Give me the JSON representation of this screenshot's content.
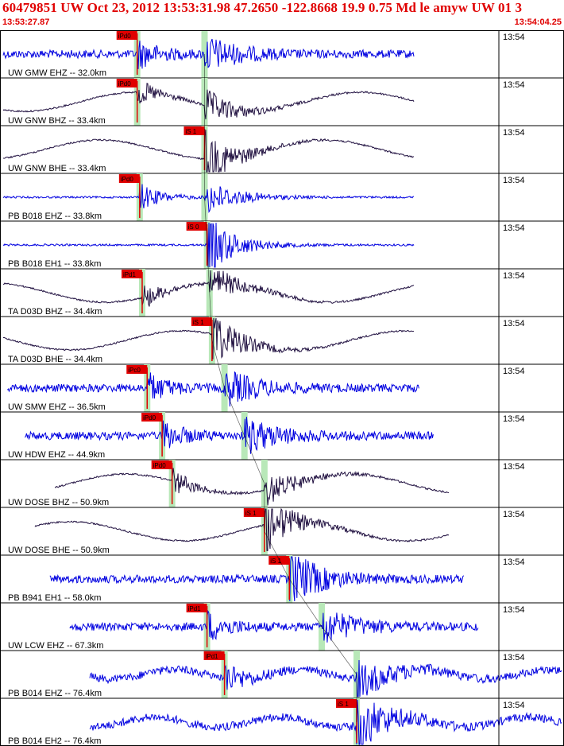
{
  "header": {
    "title": "60479851 UW Oct 23, 2012 13:53:31.98   47.2650 -122.8668 19.9 0.75 Md le amyw UW 01   3",
    "start_time": "13:53:27.87",
    "end_time": "13:54:04.25"
  },
  "colors": {
    "header_text": "#e00000",
    "trace_blue": "#0000e0",
    "trace_dark": "#201040",
    "pick_box": "#e00000",
    "pick_window": "#b8e8b8",
    "travel_curve": "#000000"
  },
  "chart_data": {
    "type": "line",
    "title": "60479851 UW Oct 23, 2012 13:53:31.98   47.2650 -122.8668 19.9 0.75 Md le amyw UW 01   3",
    "x_range": [
      "13:53:27.87",
      "13:54:04.25"
    ],
    "xlabel": "",
    "ylabel": "",
    "minute_marker": "13:54",
    "series": [
      {
        "name": "UW GMW EHZ -- 32.0km",
        "color": "blue",
        "pick": "iPd0",
        "pick_x": 0.275,
        "second_arrival": 0.41,
        "trace_start": 0.0,
        "trace_end": 0.83,
        "style": "noise"
      },
      {
        "name": "UW GNW BHZ -- 33.4km",
        "color": "dark",
        "pick": "iPd0",
        "pick_x": 0.275,
        "second_arrival": 0.41,
        "trace_start": 0.0,
        "trace_end": 0.83,
        "style": "wave"
      },
      {
        "name": "UW GNW BHE -- 33.4km",
        "color": "dark",
        "pick": "iS 1",
        "pick_x": 0.41,
        "second_arrival": 0.41,
        "trace_start": 0.0,
        "trace_end": 0.83,
        "style": "wave"
      },
      {
        "name": "PB B018 EHZ -- 33.8km",
        "color": "blue",
        "pick": "iPd0",
        "pick_x": 0.28,
        "second_arrival": 0.41,
        "trace_start": 0.0,
        "trace_end": 0.83,
        "style": "quiet"
      },
      {
        "name": "PB B018 EH1 -- 33.8km",
        "color": "blue",
        "pick": "iS 0",
        "pick_x": 0.415,
        "second_arrival": 0.415,
        "trace_start": 0.0,
        "trace_end": 0.83,
        "style": "quiet"
      },
      {
        "name": "TA D03D BHZ -- 34.4km",
        "color": "dark",
        "pick": "iPd1",
        "pick_x": 0.285,
        "second_arrival": 0.42,
        "trace_start": 0.0,
        "trace_end": 0.83,
        "style": "wave"
      },
      {
        "name": "TA D03D BHE -- 34.4km",
        "color": "dark",
        "pick": "iS 1",
        "pick_x": 0.425,
        "second_arrival": 0.425,
        "trace_start": 0.0,
        "trace_end": 0.83,
        "style": "wave"
      },
      {
        "name": "UW SMW EHZ -- 36.5km",
        "color": "blue",
        "pick": "iPc0",
        "pick_x": 0.295,
        "second_arrival": 0.45,
        "trace_start": 0.015,
        "trace_end": 0.84,
        "style": "noise"
      },
      {
        "name": "UW HDW EHZ -- 44.9km",
        "color": "blue",
        "pick": "iPd0",
        "pick_x": 0.325,
        "second_arrival": 0.49,
        "trace_start": 0.05,
        "trace_end": 0.87,
        "style": "noise"
      },
      {
        "name": "UW DOSE BHZ -- 50.9km",
        "color": "dark",
        "pick": "iPd0",
        "pick_x": 0.345,
        "second_arrival": 0.53,
        "trace_start": 0.11,
        "trace_end": 0.9,
        "style": "wave"
      },
      {
        "name": "UW DOSE BHE -- 50.9km",
        "color": "dark",
        "pick": "iS 1",
        "pick_x": 0.53,
        "second_arrival": 0.53,
        "trace_start": 0.07,
        "trace_end": 0.9,
        "style": "wave"
      },
      {
        "name": "PB B941 EH1 -- 58.0km",
        "color": "blue",
        "pick": "iS 1",
        "pick_x": 0.58,
        "second_arrival": 0.58,
        "trace_start": 0.1,
        "trace_end": 0.93,
        "style": "noise"
      },
      {
        "name": "UW LCW EHZ -- 67.3km",
        "color": "blue",
        "pick": "iPd1",
        "pick_x": 0.415,
        "second_arrival": 0.645,
        "trace_start": 0.14,
        "trace_end": 0.96,
        "style": "noise"
      },
      {
        "name": "PB B014 EHZ -- 76.4km",
        "color": "blue",
        "pick": "iPd1",
        "pick_x": 0.45,
        "second_arrival": 0.715,
        "trace_start": 0.18,
        "trace_end": 1.0,
        "style": "noise"
      },
      {
        "name": "PB B014 EH2 -- 76.4km",
        "color": "blue",
        "pick": "iS 1",
        "pick_x": 0.715,
        "second_arrival": 0.715,
        "trace_start": 0.18,
        "trace_end": 1.0,
        "style": "noise"
      }
    ]
  }
}
